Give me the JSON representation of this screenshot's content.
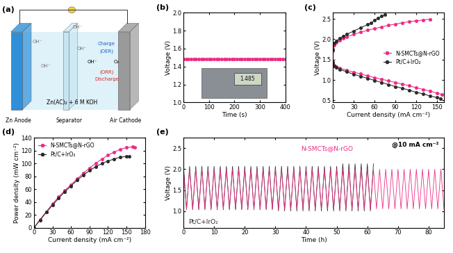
{
  "diagram": {
    "title": "(a)",
    "anode": "Zn Anode",
    "separator": "Separator",
    "cathode": "Air Cathode",
    "electrolyte": "Zn(AC)₂ + 6 M KOH",
    "ion_labels": [
      "OH⁻",
      "OH⁻",
      "OH⁻",
      "OH⁻"
    ],
    "charge": "Charge",
    "oer": "(OER)",
    "orr": "(ORR)",
    "discharge": "Discharge",
    "o2": "O₂",
    "cathode_ion": "OH⁻"
  },
  "chart_data": [
    {
      "type": "line",
      "title": "(b)",
      "x_label": "Time (s)",
      "y_label": "Voltage (V)",
      "xlim": [
        0,
        400
      ],
      "xticks": [
        0,
        100,
        200,
        300,
        400
      ],
      "ylim": [
        1.0,
        2.0
      ],
      "yticks": [
        {
          "value": 1.0,
          "label": "1.0"
        },
        1.2,
        1.4,
        1.6,
        1.8,
        {
          "value": 2.0,
          "label": "2.0"
        }
      ],
      "annotations": [
        "1.485"
      ],
      "x": [
        0,
        10,
        20,
        30,
        40,
        50,
        60,
        70,
        80,
        90,
        100,
        110,
        120,
        130,
        140,
        150,
        160,
        170,
        180,
        190,
        200,
        210,
        220,
        230,
        240,
        250,
        260,
        270,
        280,
        290,
        300,
        310,
        320,
        330,
        340,
        350,
        360,
        370,
        380,
        390,
        400
      ],
      "series": [
        {
          "color": "#ec2d86",
          "marker": "o",
          "line_style": "solid",
          "values": [
            1.48,
            1.48,
            1.48,
            1.48,
            1.48,
            1.48,
            1.48,
            1.48,
            1.48,
            1.48,
            1.48,
            1.48,
            1.48,
            1.48,
            1.48,
            1.48,
            1.48,
            1.48,
            1.48,
            1.48,
            1.48,
            1.48,
            1.48,
            1.48,
            1.48,
            1.48,
            1.48,
            1.48,
            1.48,
            1.48,
            1.48,
            1.48,
            1.48,
            1.48,
            1.48,
            1.48,
            1.48,
            1.48,
            1.48,
            1.48,
            1.48
          ]
        }
      ]
    },
    {
      "type": "line",
      "title": "(c)",
      "x_label": "Current density (mA cm⁻²)",
      "y_label": "Voltage (V)",
      "xlim": [
        0,
        160
      ],
      "xticks": [
        0,
        30,
        60,
        90,
        120,
        150
      ],
      "ylim": [
        0.45,
        2.65
      ],
      "yticks": [
        0.5,
        {
          "value": 1.0,
          "label": "1.0"
        },
        1.5,
        {
          "value": 2.0,
          "label": "2.0"
        },
        2.5
      ],
      "legend": "center right",
      "series": [
        {
          "name": "N-SMCTs@N-rGO",
          "color": "#ec2d86",
          "marker": "o",
          "line_style": "solid",
          "x": [
            0,
            2,
            5,
            10,
            15,
            20,
            30,
            40,
            50,
            60,
            70,
            80,
            90,
            100,
            110,
            120,
            130,
            140
          ],
          "values": [
            1.72,
            1.85,
            1.92,
            1.98,
            2.02,
            2.06,
            2.12,
            2.17,
            2.22,
            2.26,
            2.3,
            2.34,
            2.37,
            2.4,
            2.43,
            2.45,
            2.47,
            2.49
          ]
        },
        {
          "name": "N-SMCTs@N-rGO",
          "color": "#ec2d86",
          "marker": "o",
          "line_style": "solid",
          "x": [
            0,
            2,
            5,
            10,
            20,
            30,
            40,
            50,
            60,
            70,
            80,
            90,
            100,
            110,
            120,
            130,
            140,
            150,
            157
          ],
          "values": [
            1.45,
            1.36,
            1.32,
            1.29,
            1.24,
            1.19,
            1.15,
            1.1,
            1.06,
            1.02,
            0.98,
            0.94,
            0.9,
            0.86,
            0.81,
            0.77,
            0.73,
            0.68,
            0.65
          ]
        },
        {
          "name": "Pt/C+IrO₂",
          "color": "#2b2b2b",
          "marker": "o",
          "line_style": "solid",
          "x": [
            0,
            2,
            5,
            10,
            15,
            20,
            30,
            40,
            50,
            55,
            60,
            65,
            70,
            75
          ],
          "values": [
            1.75,
            1.9,
            1.96,
            2.02,
            2.07,
            2.12,
            2.2,
            2.28,
            2.36,
            2.4,
            2.46,
            2.52,
            2.56,
            2.6
          ]
        },
        {
          "name": "Pt/C+IrO₂",
          "color": "#2b2b2b",
          "marker": "o",
          "line_style": "solid",
          "x": [
            0,
            2,
            5,
            10,
            20,
            30,
            40,
            50,
            60,
            70,
            80,
            90,
            100,
            110,
            120,
            130,
            140,
            150,
            155
          ],
          "values": [
            1.42,
            1.34,
            1.3,
            1.26,
            1.2,
            1.14,
            1.09,
            1.04,
            0.99,
            0.94,
            0.89,
            0.84,
            0.8,
            0.75,
            0.7,
            0.66,
            0.61,
            0.57,
            0.55
          ]
        }
      ]
    },
    {
      "type": "line",
      "title": "(d)",
      "x_label": "Current density (mA cm⁻²)",
      "y_label": "Power density (mW cm⁻²)",
      "xlim": [
        0,
        180
      ],
      "xticks": [
        0,
        30,
        60,
        90,
        120,
        150,
        180
      ],
      "ylim": [
        0,
        140
      ],
      "yticks": [
        0,
        20,
        40,
        60,
        80,
        100,
        120,
        140
      ],
      "legend": "upper left",
      "series": [
        {
          "name": "N-SMCTs@N-rGO",
          "color": "#ec2d86",
          "marker": "o",
          "line_style": "solid",
          "x": [
            0,
            10,
            20,
            30,
            40,
            50,
            60,
            70,
            80,
            90,
            100,
            110,
            120,
            130,
            140,
            150,
            160,
            163
          ],
          "values": [
            0,
            13,
            25,
            37,
            48,
            58,
            67,
            76,
            85,
            93,
            100,
            107,
            113,
            118,
            122,
            125,
            126,
            125
          ]
        },
        {
          "name": "Pt/C+IrO₂",
          "color": "#2b2b2b",
          "marker": "o",
          "line_style": "solid",
          "x": [
            0,
            10,
            20,
            30,
            40,
            50,
            60,
            70,
            80,
            90,
            100,
            110,
            120,
            130,
            140,
            150,
            155
          ],
          "values": [
            0,
            12,
            24,
            35,
            46,
            56,
            65,
            74,
            82,
            89,
            95,
            100,
            104,
            107,
            110,
            111,
            111
          ]
        }
      ]
    },
    {
      "type": "line",
      "title": "(e)",
      "x_label": "Time (h)",
      "y_label": "Voltage (V)",
      "xlim": [
        0,
        85
      ],
      "xticks": [
        0,
        10,
        20,
        30,
        40,
        50,
        60,
        70,
        80
      ],
      "ylim": [
        0.6,
        2.75
      ],
      "yticks": [
        {
          "value": 1.0,
          "label": "1.0"
        },
        1.5,
        {
          "value": 2.0,
          "label": "2.0"
        },
        2.5
      ],
      "annotations": [
        "@10 mA cm⁻²"
      ],
      "series": [
        {
          "name": "Pt/C+IrO₂",
          "color": "#2b2b2b",
          "marker": "none",
          "line_style": "solid",
          "x": [
            0,
            1,
            2,
            3,
            4,
            5,
            6,
            7,
            8,
            9,
            10,
            11,
            12,
            13,
            14,
            15,
            16,
            17,
            18,
            19,
            20,
            21,
            22,
            23,
            24,
            25,
            26,
            27,
            28,
            29,
            30,
            31,
            32,
            33,
            34,
            35,
            36,
            37,
            38,
            39,
            40,
            41,
            42,
            43,
            44,
            45,
            46,
            47,
            48,
            49,
            50,
            51,
            52,
            53,
            54,
            55,
            56,
            57,
            58,
            59,
            60,
            61,
            62
          ],
          "values": [
            2.07,
            1.03,
            2.07,
            1.03,
            2.07,
            1.03,
            2.07,
            1.03,
            2.07,
            1.03,
            2.07,
            1.03,
            2.07,
            1.03,
            2.07,
            1.03,
            2.07,
            1.03,
            2.07,
            1.03,
            2.07,
            1.03,
            2.07,
            1.03,
            2.07,
            1.03,
            2.07,
            1.03,
            2.07,
            1.03,
            2.07,
            1.0,
            2.07,
            1.0,
            2.07,
            1.0,
            2.07,
            1.0,
            2.07,
            1.0,
            2.07,
            1.0,
            2.07,
            1.0,
            2.07,
            1.0,
            2.07,
            1.0,
            2.07,
            1.0,
            2.07,
            1.0,
            2.13,
            1.0,
            2.13,
            1.0,
            2.13,
            1.0,
            2.13,
            1.0,
            2.13,
            1.0,
            2.13
          ]
        },
        {
          "name": "N-SMCTs@N-rGO",
          "color": "#ec2d86",
          "marker": "none",
          "line_style": "solid",
          "x": [
            0,
            1,
            2,
            3,
            4,
            5,
            6,
            7,
            8,
            9,
            10,
            11,
            12,
            13,
            14,
            15,
            16,
            17,
            18,
            19,
            20,
            21,
            22,
            23,
            24,
            25,
            26,
            27,
            28,
            29,
            30,
            31,
            32,
            33,
            34,
            35,
            36,
            37,
            38,
            39,
            40,
            41,
            42,
            43,
            44,
            45,
            46,
            47,
            48,
            49,
            50,
            51,
            52,
            53,
            54,
            55,
            56,
            57,
            58,
            59,
            60,
            61,
            62,
            63,
            64,
            65,
            66,
            67,
            68,
            69,
            70,
            71,
            72,
            73,
            74,
            75,
            76,
            77,
            78,
            79,
            80,
            81,
            82,
            83,
            84,
            85
          ],
          "values": [
            2.0,
            1.05,
            2.0,
            1.05,
            2.0,
            1.05,
            2.0,
            1.05,
            2.0,
            1.05,
            2.0,
            1.05,
            2.0,
            1.05,
            2.0,
            1.05,
            2.0,
            1.05,
            2.0,
            1.05,
            2.0,
            1.05,
            2.0,
            1.05,
            2.0,
            1.05,
            2.0,
            1.05,
            2.0,
            1.05,
            2.0,
            1.05,
            2.0,
            1.05,
            2.0,
            1.05,
            2.0,
            1.05,
            2.0,
            1.05,
            2.0,
            1.05,
            2.0,
            1.05,
            2.0,
            1.05,
            2.0,
            1.05,
            2.0,
            1.05,
            2.0,
            1.05,
            2.0,
            1.05,
            2.0,
            1.05,
            2.0,
            1.05,
            2.0,
            1.05,
            2.0,
            1.05,
            2.0,
            1.05,
            2.0,
            1.05,
            2.0,
            1.05,
            2.0,
            1.05,
            2.0,
            1.05,
            2.0,
            1.05,
            2.0,
            1.05,
            2.0,
            1.05,
            2.0,
            1.05,
            2.0,
            1.05,
            2.0,
            1.05,
            2.0,
            1.05
          ]
        }
      ]
    }
  ]
}
